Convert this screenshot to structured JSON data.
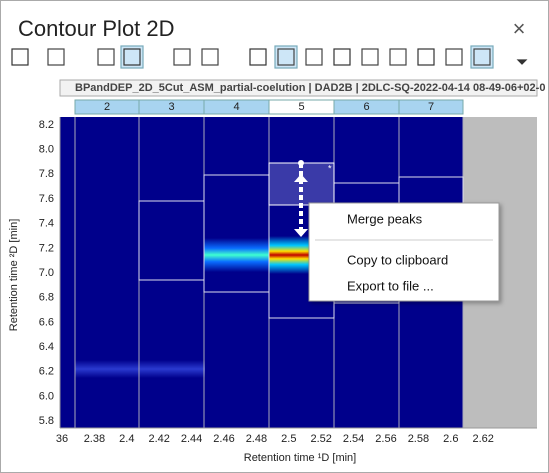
{
  "window": {
    "title": "Contour Plot 2D",
    "close": "×"
  },
  "plot": {
    "header": "BPandDEP_2D_5Cut_ASM_partial-coelution | DAD2B | 2DLC-SQ-2022-04-14 08-49-06+02-0",
    "fractions": [
      "2",
      "3",
      "4",
      "5",
      "6",
      "7"
    ],
    "x_axis_label": "Retention time ¹D [min]",
    "y_axis_label": "Retention time ²D [min]",
    "x_ticks": [
      "36",
      "2.38",
      "2.4",
      "2.42",
      "2.44",
      "2.46",
      "2.48",
      "2.5",
      "2.52",
      "2.54",
      "2.56",
      "2.58",
      "2.6",
      "2.62"
    ],
    "y_ticks": [
      "8.2",
      "8.0",
      "7.8",
      "7.6",
      "7.4",
      "7.2",
      "7.0",
      "6.8",
      "6.6",
      "6.4",
      "6.2",
      "6.0",
      "5.8"
    ],
    "marker": "*"
  },
  "context_menu": {
    "items": [
      "Merge peaks",
      "Copy to clipboard",
      "Export to file ..."
    ]
  }
}
